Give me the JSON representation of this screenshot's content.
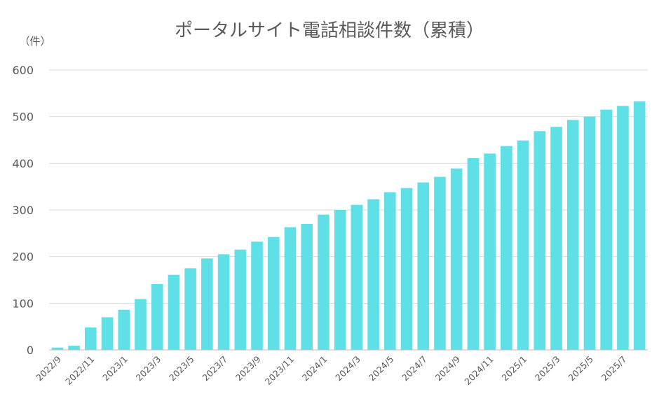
{
  "chart_data": {
    "type": "bar",
    "title": "ポータルサイト電話相談件数（累積）",
    "unit_label": "（件）",
    "xlabel": "",
    "ylabel": "",
    "ylim": [
      0,
      600
    ],
    "yticks": [
      0,
      100,
      200,
      300,
      400,
      500,
      600
    ],
    "grid": true,
    "bar_color": "#5ee0e6",
    "categories": [
      "2022/9",
      "2022/10",
      "2022/11",
      "2022/12",
      "2023/1",
      "2023/2",
      "2023/3",
      "2023/4",
      "2023/5",
      "2023/6",
      "2023/7",
      "2023/8",
      "2023/9",
      "2023/10",
      "2023/11",
      "2023/12",
      "2024/1",
      "2024/2",
      "2024/3",
      "2024/4",
      "2024/5",
      "2024/6",
      "2024/7",
      "2024/8",
      "2024/9",
      "2024/10",
      "2024/11",
      "2024/12",
      "2025/1",
      "2025/2",
      "2025/3",
      "2025/4",
      "2025/5",
      "2025/6",
      "2025/7",
      "2025/8"
    ],
    "tick_labels_shown": [
      "2022/9",
      "2022/11",
      "2023/1",
      "2023/3",
      "2023/5",
      "2023/7",
      "2023/9",
      "2023/11",
      "2024/1",
      "2024/3",
      "2024/5",
      "2024/7",
      "2024/9",
      "2024/11",
      "2025/1",
      "2025/3",
      "2025/5",
      "2025/7"
    ],
    "values": [
      5,
      9,
      48,
      70,
      86,
      109,
      141,
      161,
      175,
      196,
      205,
      215,
      232,
      242,
      263,
      270,
      290,
      300,
      311,
      323,
      338,
      347,
      359,
      371,
      389,
      411,
      421,
      437,
      449,
      469,
      478,
      493,
      500,
      515,
      523,
      533
    ]
  }
}
